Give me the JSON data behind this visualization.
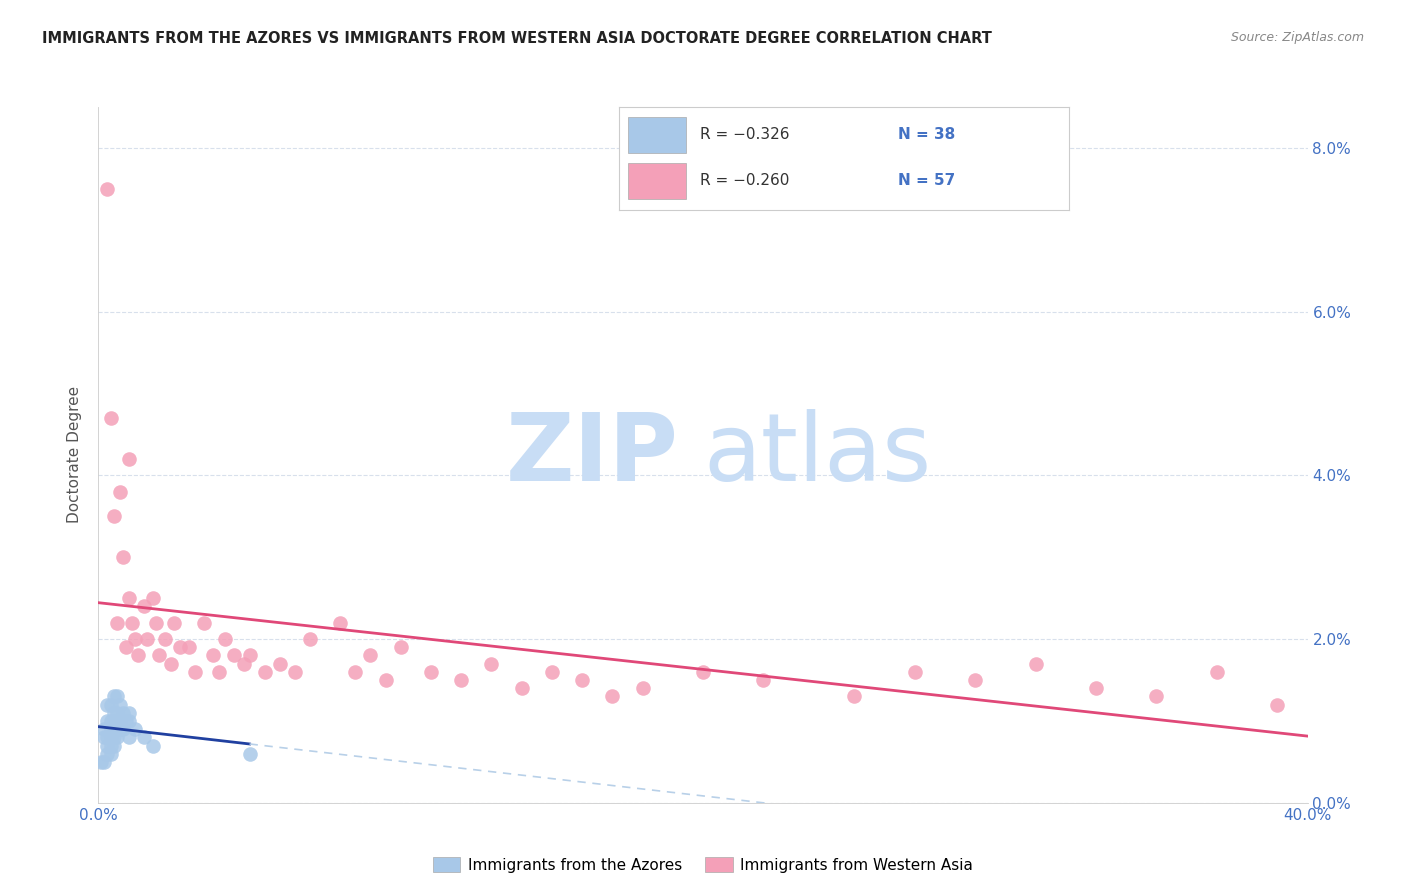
{
  "title": "IMMIGRANTS FROM THE AZORES VS IMMIGRANTS FROM WESTERN ASIA DOCTORATE DEGREE CORRELATION CHART",
  "source": "Source: ZipAtlas.com",
  "ylabel": "Doctorate Degree",
  "right_ytick_vals": [
    0.0,
    0.02,
    0.04,
    0.06,
    0.08
  ],
  "xlim": [
    0.0,
    0.4
  ],
  "ylim": [
    0.0,
    0.085
  ],
  "legend_line1": "R = −0.326   N = 38",
  "legend_line2": "R = −0.260   N = 57",
  "color_azores": "#a8c8e8",
  "color_western_asia": "#f4a0b8",
  "color_azores_line": "#2040a0",
  "color_western_asia_line": "#e04878",
  "color_azores_line_ext": "#b8d0e8",
  "grid_color": "#d8e0ec",
  "background_color": "#ffffff",
  "watermark_zip": "ZIP",
  "watermark_atlas": "atlas",
  "watermark_color_zip": "#c8ddf0",
  "watermark_color_atlas": "#c8ddf0",
  "scatter_azores_x": [
    0.001,
    0.002,
    0.002,
    0.002,
    0.003,
    0.003,
    0.003,
    0.003,
    0.003,
    0.004,
    0.004,
    0.004,
    0.004,
    0.004,
    0.004,
    0.005,
    0.005,
    0.005,
    0.005,
    0.005,
    0.005,
    0.006,
    0.006,
    0.006,
    0.006,
    0.007,
    0.007,
    0.007,
    0.008,
    0.008,
    0.009,
    0.01,
    0.01,
    0.01,
    0.012,
    0.015,
    0.018,
    0.05
  ],
  "scatter_azores_y": [
    0.005,
    0.005,
    0.008,
    0.009,
    0.006,
    0.007,
    0.008,
    0.01,
    0.012,
    0.006,
    0.007,
    0.008,
    0.009,
    0.01,
    0.012,
    0.007,
    0.008,
    0.009,
    0.01,
    0.011,
    0.013,
    0.008,
    0.01,
    0.011,
    0.013,
    0.009,
    0.01,
    0.012,
    0.009,
    0.011,
    0.01,
    0.008,
    0.01,
    0.011,
    0.009,
    0.008,
    0.007,
    0.006
  ],
  "scatter_western_asia_x": [
    0.003,
    0.004,
    0.005,
    0.006,
    0.007,
    0.008,
    0.009,
    0.01,
    0.011,
    0.012,
    0.013,
    0.015,
    0.016,
    0.018,
    0.019,
    0.02,
    0.022,
    0.024,
    0.025,
    0.027,
    0.03,
    0.032,
    0.035,
    0.038,
    0.04,
    0.042,
    0.045,
    0.048,
    0.05,
    0.055,
    0.06,
    0.065,
    0.07,
    0.08,
    0.085,
    0.09,
    0.095,
    0.1,
    0.11,
    0.12,
    0.13,
    0.14,
    0.15,
    0.16,
    0.17,
    0.18,
    0.2,
    0.22,
    0.25,
    0.27,
    0.29,
    0.31,
    0.33,
    0.35,
    0.37,
    0.39,
    0.01
  ],
  "scatter_western_asia_y": [
    0.075,
    0.047,
    0.035,
    0.022,
    0.038,
    0.03,
    0.019,
    0.025,
    0.022,
    0.02,
    0.018,
    0.024,
    0.02,
    0.025,
    0.022,
    0.018,
    0.02,
    0.017,
    0.022,
    0.019,
    0.019,
    0.016,
    0.022,
    0.018,
    0.016,
    0.02,
    0.018,
    0.017,
    0.018,
    0.016,
    0.017,
    0.016,
    0.02,
    0.022,
    0.016,
    0.018,
    0.015,
    0.019,
    0.016,
    0.015,
    0.017,
    0.014,
    0.016,
    0.015,
    0.013,
    0.014,
    0.016,
    0.015,
    0.013,
    0.016,
    0.015,
    0.017,
    0.014,
    0.013,
    0.016,
    0.012,
    0.042
  ]
}
